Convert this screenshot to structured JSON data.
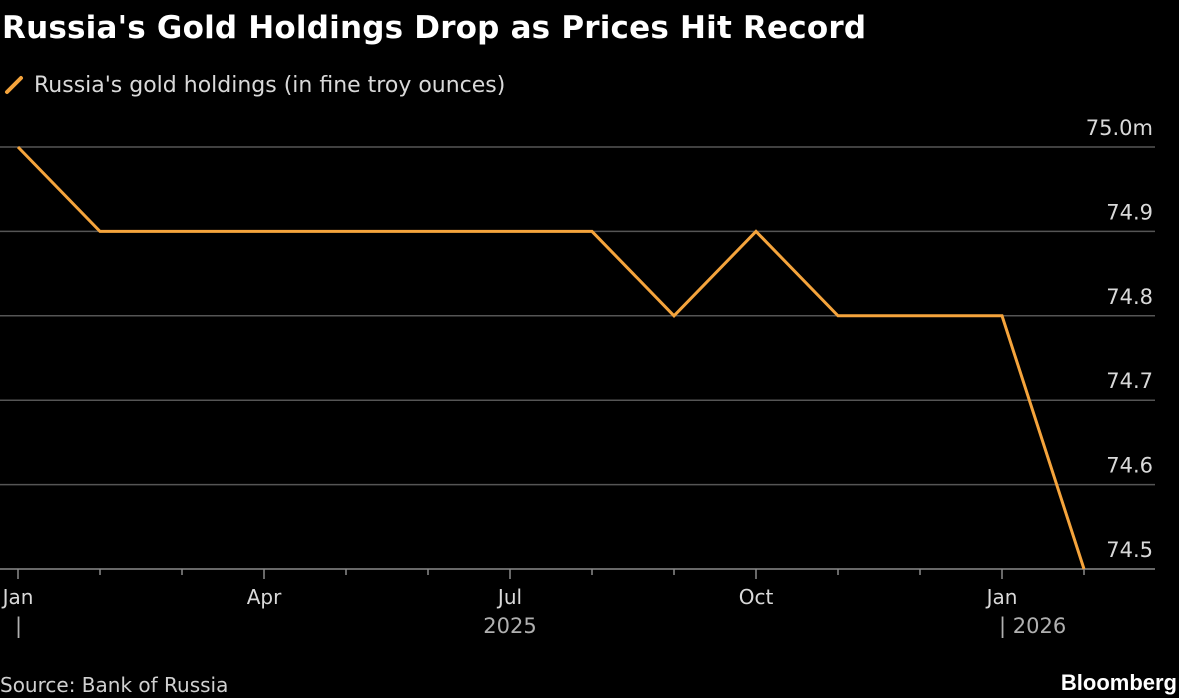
{
  "header": {
    "title": "Russia's Gold Holdings Drop as Prices Hit Record"
  },
  "legend": {
    "label": "Russia's gold holdings (in fine troy ounces)"
  },
  "footer": {
    "source": "Source: Bank of Russia",
    "brand": "Bloomberg"
  },
  "colors": {
    "background": "#000000",
    "series": "#f5a43c",
    "grid": "#555555",
    "text": "#d9d9d9"
  },
  "chart_data": {
    "type": "line",
    "x": [
      "2025-01",
      "2025-02",
      "2025-03",
      "2025-04",
      "2025-05",
      "2025-06",
      "2025-07",
      "2025-08",
      "2025-09",
      "2025-10",
      "2025-11",
      "2025-12",
      "2026-01",
      "2026-02"
    ],
    "series": [
      {
        "values": [
          75.0,
          74.9,
          74.9,
          74.9,
          74.9,
          74.9,
          74.9,
          74.9,
          74.8,
          74.9,
          74.8,
          74.8,
          74.8,
          74.5
        ]
      }
    ],
    "ylim": [
      74.5,
      75.0
    ],
    "y_ticks": [
      {
        "value": 75.0,
        "label": "75.0m"
      },
      {
        "value": 74.9,
        "label": "74.9"
      },
      {
        "value": 74.8,
        "label": "74.8"
      },
      {
        "value": 74.7,
        "label": "74.7"
      },
      {
        "value": 74.6,
        "label": "74.6"
      },
      {
        "value": 74.5,
        "label": "74.5"
      }
    ],
    "x_tick_labels": [
      {
        "index": 0,
        "label": "Jan"
      },
      {
        "index": 3,
        "label": "Apr"
      },
      {
        "index": 6,
        "label": "Jul"
      },
      {
        "index": 9,
        "label": "Oct"
      },
      {
        "index": 12,
        "label": "Jan"
      }
    ],
    "x_year_labels": [
      {
        "index": 0,
        "label": "|"
      },
      {
        "index": 6,
        "label": "2025"
      },
      {
        "index": 12,
        "label": "| 2026"
      }
    ],
    "axis_position": "right",
    "grid": true,
    "legend_position": "top-left"
  }
}
